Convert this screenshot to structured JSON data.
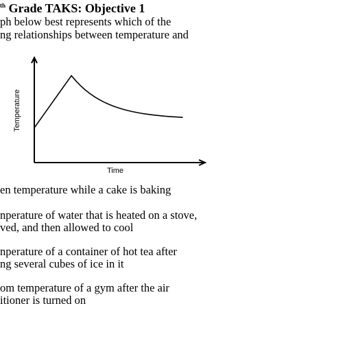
{
  "header": {
    "title_prefix": "th",
    "title_main": "Grade TAKS: Objective 1"
  },
  "question": {
    "line1": "ph below best represents which of the",
    "line2": "ng relationships between temperature and"
  },
  "chart_data": {
    "type": "line",
    "xlabel": "Time",
    "ylabel": "Temperature",
    "x": [
      0,
      1,
      2,
      3,
      4
    ],
    "y": [
      40,
      100,
      70,
      55,
      50
    ],
    "xlim": [
      0,
      4.6
    ],
    "ylim": [
      0,
      120
    ],
    "grid": false
  },
  "choices": [
    {
      "lines": [
        "en temperature while a cake is baking"
      ]
    },
    {
      "lines": [
        "nperature of water that is heated on a stove,",
        "ved, and then allowed to cool"
      ]
    },
    {
      "lines": [
        "nperature of a container of hot tea after",
        "ng several cubes of ice in it"
      ]
    },
    {
      "lines": [
        "om temperature of a gym after the air",
        "itioner is turned on"
      ]
    }
  ]
}
